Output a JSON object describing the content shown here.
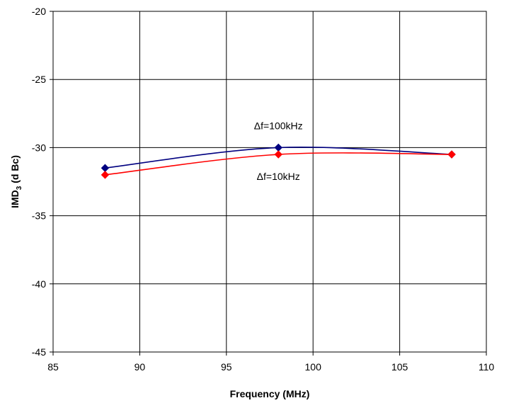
{
  "chart_data": {
    "type": "line",
    "title": "",
    "xlabel": "Frequency (MHz)",
    "ylabel": {
      "main": "IMD",
      "sub": "3",
      "unit": " (d Bc)"
    },
    "xlim": [
      85,
      110
    ],
    "ylim": [
      -45,
      -20
    ],
    "xticks": [
      85,
      90,
      95,
      100,
      105,
      110
    ],
    "yticks": [
      -20,
      -25,
      -30,
      -35,
      -40,
      -45
    ],
    "grid": true,
    "series": [
      {
        "name": "Δf=100kHz",
        "color": "#000080",
        "marker": "diamond",
        "x": [
          88,
          98,
          108
        ],
        "y": [
          -31.5,
          -30.0,
          -30.5
        ]
      },
      {
        "name": "Δf=10kHz",
        "color": "#ff0000",
        "marker": "diamond",
        "x": [
          88,
          98,
          108
        ],
        "y": [
          -32.0,
          -30.5,
          -30.5
        ]
      }
    ],
    "annotations": [
      {
        "text": "Δf=100kHz",
        "x": 98,
        "y": -28.4
      },
      {
        "text": "Δf=10kHz",
        "x": 98,
        "y": -32.1
      }
    ]
  }
}
